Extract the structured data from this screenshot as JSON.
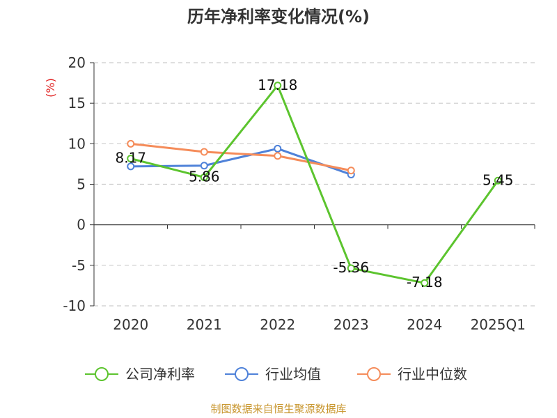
{
  "title": "历年净利率变化情况(%)",
  "footer": "制图数据来自恒生聚源数据库",
  "colors": {
    "company": "#5cc42e",
    "industry_avg": "#4f82d9",
    "industry_median": "#f58c5a",
    "grid": "#cccccc",
    "axis": "#333333",
    "ylabel": "#e02020",
    "footer": "#c8962e"
  },
  "chart_data": {
    "type": "line",
    "title": "历年净利率变化情况(%)",
    "xlabel": "",
    "ylabel": "(%)",
    "ylim": [
      -10,
      20
    ],
    "yticks": [
      20,
      15,
      10,
      5,
      0,
      -5,
      -10
    ],
    "categories": [
      "2020",
      "2021",
      "2022",
      "2023",
      "2024",
      "2025Q1"
    ],
    "grid": true,
    "legend_position": "bottom",
    "series": [
      {
        "name": "公司净利率",
        "color": "#5cc42e",
        "values": [
          8.17,
          5.86,
          17.18,
          -5.36,
          -7.18,
          5.45
        ],
        "labels": [
          "8.17",
          "5.86",
          "17.18",
          "-5.36",
          "-7.18",
          "5.45"
        ]
      },
      {
        "name": "行业均值",
        "color": "#4f82d9",
        "values": [
          7.2,
          7.3,
          9.4,
          6.2,
          null,
          null
        ]
      },
      {
        "name": "行业中位数",
        "color": "#f58c5a",
        "values": [
          10.0,
          9.0,
          8.5,
          6.7,
          null,
          null
        ]
      }
    ]
  }
}
